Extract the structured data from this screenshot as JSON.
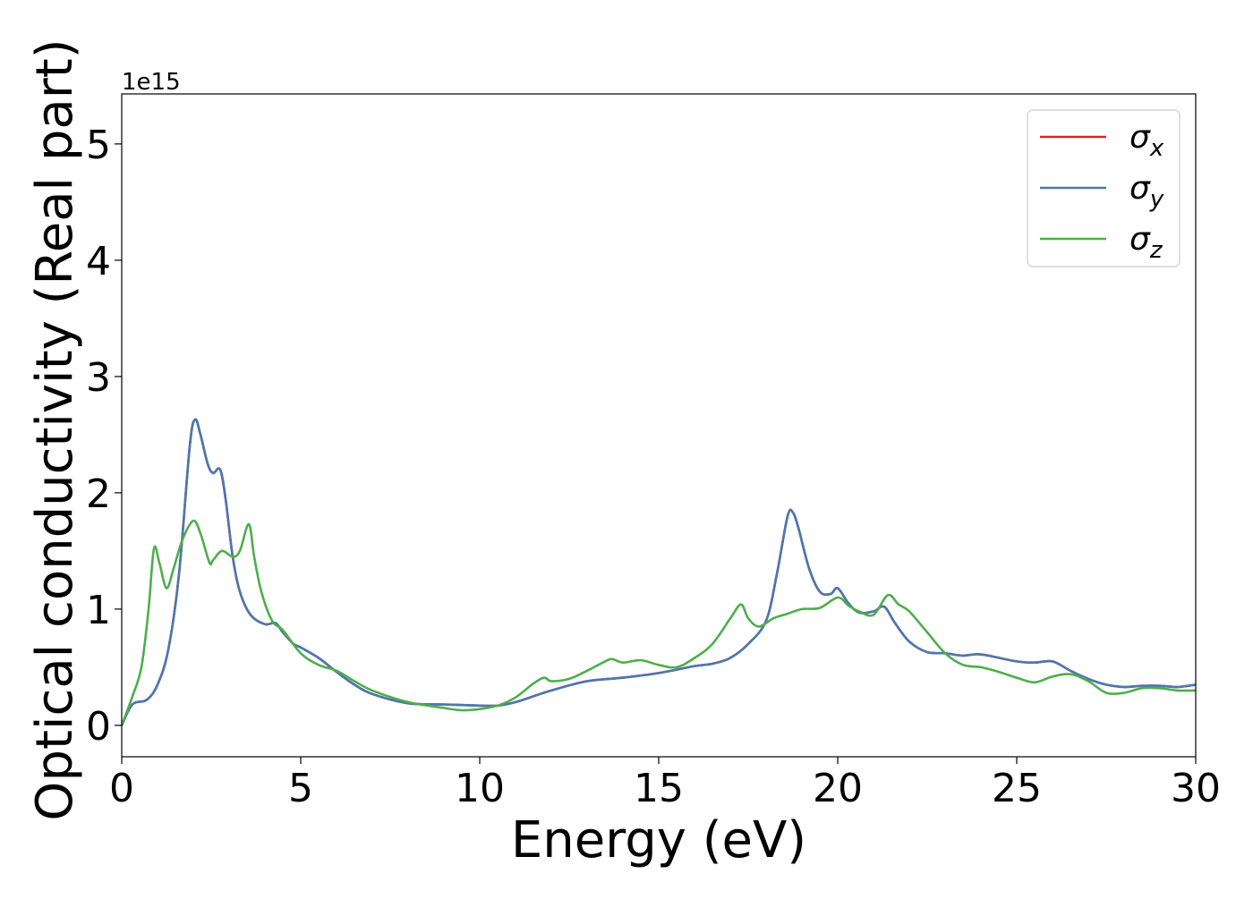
{
  "chart_data": {
    "type": "line",
    "title": "",
    "xlabel": "Energy (eV)",
    "ylabel": "Optical conductivity (Real part)",
    "y_offset_text": "1e15",
    "xlim": [
      0,
      30
    ],
    "ylim": [
      -0.27,
      5.43
    ],
    "xticks": [
      0,
      5,
      10,
      15,
      20,
      25,
      30
    ],
    "xtick_labels": [
      "0",
      "5",
      "10",
      "15",
      "20",
      "25",
      "30"
    ],
    "yticks": [
      0,
      1,
      2,
      3,
      4,
      5
    ],
    "ytick_labels": [
      "0",
      "1",
      "2",
      "3",
      "4",
      "5"
    ],
    "grid": false,
    "legend_position": "top-right",
    "series": [
      {
        "name": "σx",
        "legend_main": "σ",
        "legend_sub": "x",
        "color": "#d62728",
        "x": [
          0,
          0.3,
          0.7,
          1.0,
          1.3,
          1.6,
          1.9,
          2.05,
          2.2,
          2.4,
          2.55,
          2.75,
          2.9,
          3.1,
          3.3,
          3.6,
          4.0,
          4.3,
          4.5,
          4.8,
          5.0,
          5.5,
          6.0,
          6.5,
          7.0,
          8.0,
          9.0,
          10.0,
          10.5,
          11.0,
          12.0,
          13.0,
          14.0,
          15.0,
          16.0,
          16.5,
          17.0,
          17.5,
          18.0,
          18.3,
          18.6,
          18.75,
          18.9,
          19.2,
          19.5,
          19.8,
          20.0,
          20.3,
          20.6,
          21.0,
          21.3,
          21.6,
          22.0,
          22.5,
          23.0,
          23.5,
          24.0,
          25.0,
          25.5,
          26.0,
          26.5,
          27.0,
          27.5,
          28.0,
          28.5,
          29.0,
          29.5,
          30.0
        ],
        "values": [
          0.0,
          0.18,
          0.22,
          0.35,
          0.65,
          1.3,
          2.4,
          2.63,
          2.5,
          2.25,
          2.17,
          2.2,
          1.95,
          1.45,
          1.15,
          0.95,
          0.87,
          0.88,
          0.8,
          0.7,
          0.67,
          0.58,
          0.46,
          0.35,
          0.27,
          0.19,
          0.18,
          0.17,
          0.17,
          0.2,
          0.3,
          0.38,
          0.41,
          0.45,
          0.51,
          0.53,
          0.58,
          0.7,
          0.9,
          1.3,
          1.8,
          1.83,
          1.7,
          1.35,
          1.15,
          1.13,
          1.18,
          1.05,
          0.97,
          0.98,
          1.02,
          0.88,
          0.72,
          0.63,
          0.62,
          0.6,
          0.61,
          0.55,
          0.54,
          0.55,
          0.47,
          0.4,
          0.35,
          0.33,
          0.34,
          0.34,
          0.33,
          0.35
        ]
      },
      {
        "name": "σy",
        "legend_main": "σ",
        "legend_sub": "y",
        "color": "#4a78b0",
        "x": [
          0,
          0.3,
          0.7,
          1.0,
          1.3,
          1.6,
          1.9,
          2.05,
          2.2,
          2.4,
          2.55,
          2.75,
          2.9,
          3.1,
          3.3,
          3.6,
          4.0,
          4.3,
          4.5,
          4.8,
          5.0,
          5.5,
          6.0,
          6.5,
          7.0,
          8.0,
          9.0,
          10.0,
          10.5,
          11.0,
          12.0,
          13.0,
          14.0,
          15.0,
          16.0,
          16.5,
          17.0,
          17.5,
          18.0,
          18.3,
          18.6,
          18.75,
          18.9,
          19.2,
          19.5,
          19.8,
          20.0,
          20.3,
          20.6,
          21.0,
          21.3,
          21.6,
          22.0,
          22.5,
          23.0,
          23.5,
          24.0,
          25.0,
          25.5,
          26.0,
          26.5,
          27.0,
          27.5,
          28.0,
          28.5,
          29.0,
          29.5,
          30.0
        ],
        "values": [
          0.0,
          0.18,
          0.22,
          0.35,
          0.65,
          1.3,
          2.4,
          2.63,
          2.5,
          2.25,
          2.17,
          2.2,
          1.95,
          1.45,
          1.15,
          0.95,
          0.87,
          0.88,
          0.8,
          0.7,
          0.67,
          0.58,
          0.46,
          0.35,
          0.27,
          0.19,
          0.18,
          0.17,
          0.17,
          0.2,
          0.3,
          0.38,
          0.41,
          0.45,
          0.51,
          0.53,
          0.58,
          0.7,
          0.9,
          1.3,
          1.8,
          1.83,
          1.7,
          1.35,
          1.15,
          1.13,
          1.18,
          1.05,
          0.97,
          0.98,
          1.02,
          0.88,
          0.72,
          0.63,
          0.62,
          0.6,
          0.61,
          0.55,
          0.54,
          0.55,
          0.47,
          0.4,
          0.35,
          0.33,
          0.34,
          0.34,
          0.33,
          0.35
        ]
      },
      {
        "name": "σz",
        "legend_main": "σ",
        "legend_sub": "z",
        "color": "#4daf4a",
        "x": [
          0,
          0.3,
          0.55,
          0.75,
          0.9,
          1.05,
          1.25,
          1.45,
          1.7,
          2.0,
          2.2,
          2.45,
          2.55,
          2.8,
          3.1,
          3.3,
          3.55,
          3.7,
          3.9,
          4.2,
          4.5,
          5.0,
          5.5,
          6.0,
          6.5,
          7.0,
          8.0,
          9.0,
          9.5,
          10.0,
          10.5,
          11.0,
          11.5,
          11.8,
          12.0,
          12.5,
          13.0,
          13.5,
          13.7,
          14.0,
          14.5,
          15.0,
          15.5,
          16.0,
          16.5,
          17.0,
          17.3,
          17.5,
          17.8,
          18.2,
          18.6,
          19.0,
          19.5,
          20.0,
          20.3,
          20.6,
          21.0,
          21.4,
          21.7,
          22.0,
          22.5,
          23.0,
          23.5,
          24.0,
          24.5,
          25.0,
          25.5,
          26.0,
          26.5,
          27.0,
          27.5,
          28.0,
          28.5,
          29.0,
          29.5,
          30.0
        ],
        "values": [
          0.0,
          0.25,
          0.5,
          1.0,
          1.52,
          1.4,
          1.18,
          1.35,
          1.6,
          1.76,
          1.65,
          1.4,
          1.42,
          1.5,
          1.45,
          1.5,
          1.73,
          1.45,
          1.15,
          0.9,
          0.82,
          0.62,
          0.52,
          0.47,
          0.38,
          0.3,
          0.2,
          0.15,
          0.13,
          0.14,
          0.17,
          0.24,
          0.36,
          0.41,
          0.38,
          0.4,
          0.47,
          0.55,
          0.57,
          0.54,
          0.56,
          0.52,
          0.5,
          0.58,
          0.7,
          0.92,
          1.04,
          0.92,
          0.85,
          0.92,
          0.96,
          1.0,
          1.01,
          1.1,
          1.03,
          0.98,
          0.95,
          1.12,
          1.04,
          0.98,
          0.8,
          0.62,
          0.52,
          0.5,
          0.46,
          0.41,
          0.37,
          0.42,
          0.44,
          0.38,
          0.28,
          0.28,
          0.32,
          0.32,
          0.3,
          0.3
        ]
      }
    ]
  }
}
